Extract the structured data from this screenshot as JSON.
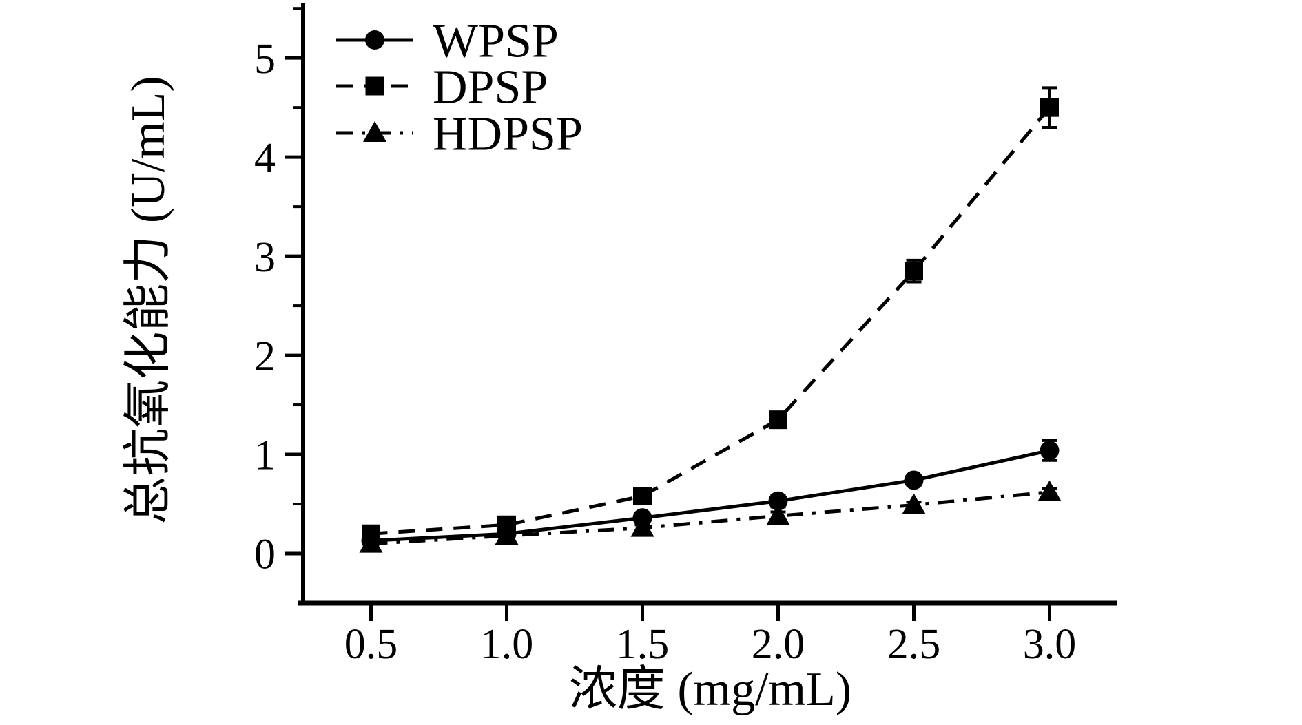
{
  "figure": {
    "background": "#ffffff",
    "axis_color": "#000000"
  },
  "chart_data": {
    "type": "line",
    "title": "",
    "xlabel": "浓度 (mg/mL)",
    "ylabel": "总抗氧化能力 (U/mL)",
    "x": [
      0.5,
      1.0,
      1.5,
      2.0,
      2.5,
      3.0
    ],
    "xlim": [
      0.25,
      3.25
    ],
    "ylim": [
      -0.5,
      5.55
    ],
    "x_ticks": [
      0.5,
      1.0,
      1.5,
      2.0,
      2.5,
      3.0
    ],
    "y_ticks": [
      0,
      1,
      2,
      3,
      4,
      5
    ],
    "y_minor_ticks": [
      0.5,
      1.5,
      2.5,
      3.5,
      4.5,
      5.5
    ],
    "grid": false,
    "legend_position": "top-left-inside",
    "color": "#000000",
    "series": [
      {
        "name": "WPSP",
        "marker": "circle",
        "line_style": "solid",
        "color": "#000000",
        "values": [
          0.13,
          0.2,
          0.36,
          0.53,
          0.74,
          1.04
        ],
        "errors": [
          0.02,
          0.02,
          0.04,
          0.06,
          0.05,
          0.1
        ]
      },
      {
        "name": "DPSP",
        "marker": "square",
        "line_style": "dashed",
        "color": "#000000",
        "values": [
          0.2,
          0.29,
          0.58,
          1.35,
          2.85,
          4.5
        ],
        "errors": [
          0.03,
          0.03,
          0.04,
          0.05,
          0.11,
          0.2
        ]
      },
      {
        "name": "HDPSP",
        "marker": "triangle",
        "line_style": "dashdot",
        "color": "#000000",
        "values": [
          0.1,
          0.18,
          0.26,
          0.38,
          0.49,
          0.62
        ],
        "errors": [
          0.02,
          0.02,
          0.03,
          0.04,
          0.03,
          0.04
        ]
      }
    ]
  }
}
